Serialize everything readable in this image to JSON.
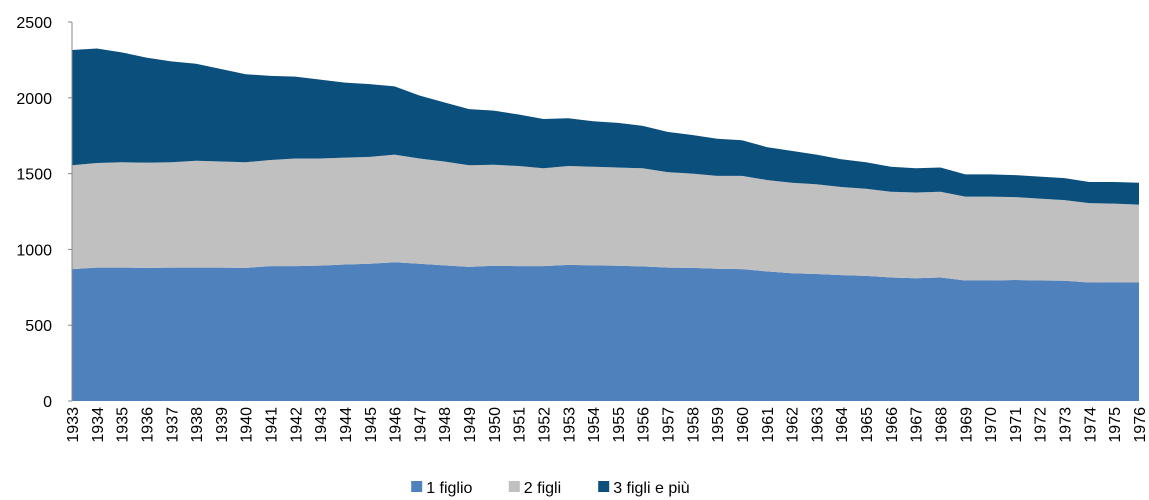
{
  "chart_data": {
    "type": "stacked-area",
    "categories": [
      "1933",
      "1934",
      "1935",
      "1936",
      "1937",
      "1938",
      "1939",
      "1940",
      "1941",
      "1942",
      "1943",
      "1944",
      "1945",
      "1946",
      "1947",
      "1948",
      "1949",
      "1950",
      "1951",
      "1952",
      "1953",
      "1954",
      "1955",
      "1956",
      "1957",
      "1958",
      "1959",
      "1960",
      "1961",
      "1962",
      "1963",
      "1964",
      "1965",
      "1966",
      "1967",
      "1968",
      "1969",
      "1970",
      "1971",
      "1972",
      "1973",
      "1974",
      "1975",
      "1976"
    ],
    "series": [
      {
        "name": "1 figlio",
        "color": "#4f81bd",
        "values": [
          870,
          880,
          880,
          878,
          880,
          880,
          880,
          878,
          890,
          890,
          893,
          900,
          905,
          915,
          905,
          895,
          885,
          892,
          890,
          890,
          898,
          895,
          892,
          888,
          880,
          878,
          872,
          870,
          855,
          843,
          838,
          830,
          825,
          815,
          810,
          815,
          795,
          795,
          798,
          795,
          793,
          782,
          783,
          782
        ]
      },
      {
        "name": "2 figli",
        "color": "#c0c0c0",
        "values": [
          685,
          690,
          695,
          694,
          695,
          705,
          700,
          697,
          700,
          710,
          707,
          705,
          705,
          710,
          695,
          685,
          670,
          666,
          660,
          645,
          652,
          650,
          648,
          647,
          630,
          622,
          613,
          615,
          603,
          597,
          592,
          582,
          575,
          565,
          565,
          565,
          553,
          553,
          547,
          540,
          532,
          523,
          519,
          513
        ]
      },
      {
        "name": "3 figli e più",
        "color": "#0b4f7c",
        "values": [
          760,
          755,
          725,
          693,
          665,
          640,
          610,
          580,
          555,
          540,
          520,
          495,
          480,
          450,
          415,
          390,
          370,
          357,
          340,
          325,
          315,
          300,
          295,
          280,
          265,
          255,
          245,
          235,
          217,
          210,
          195,
          183,
          175,
          165,
          160,
          160,
          147,
          147,
          145,
          145,
          145,
          140,
          143,
          145
        ]
      }
    ],
    "ylim": [
      0,
      2500
    ],
    "yticks": [
      0,
      500,
      1000,
      1500,
      2000,
      2500
    ],
    "grid": false,
    "legend": "bottom"
  }
}
